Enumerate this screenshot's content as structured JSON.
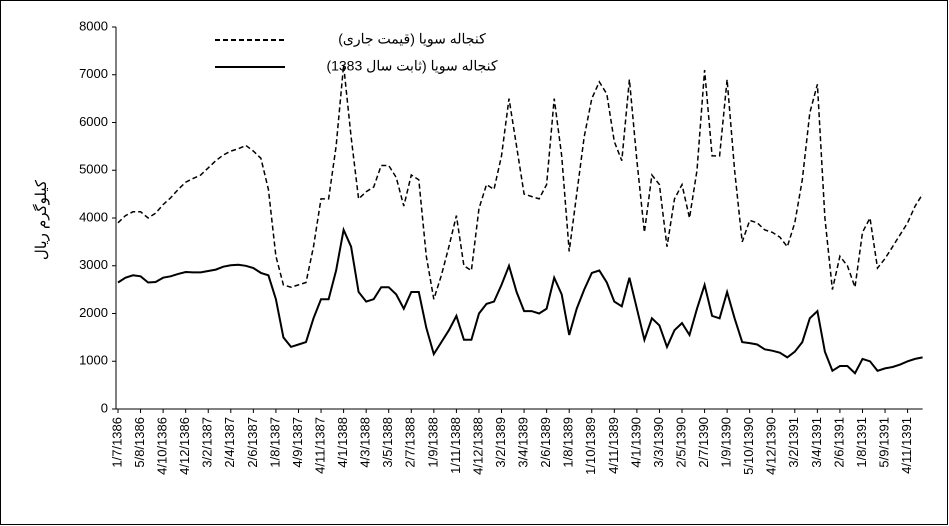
{
  "chart_data": {
    "type": "line",
    "y_label": "کیلوگرم ریال",
    "categories": [
      "1/7/1386",
      null,
      null,
      "5/8/1386",
      null,
      null,
      "4/10/1386",
      null,
      null,
      "4/12/1386",
      null,
      null,
      "3/2/1387",
      null,
      null,
      "2/4/1387",
      null,
      null,
      "2/6/1387",
      null,
      null,
      "1/8/1387",
      null,
      null,
      "4/9/1387",
      null,
      null,
      "4/11/1387",
      null,
      null,
      "4/1/1388",
      null,
      null,
      "4/3/1388",
      null,
      null,
      "3/5/1388",
      null,
      null,
      "2/7/1388",
      null,
      null,
      "1/9/1388",
      null,
      null,
      "1/11/1388",
      null,
      null,
      "4/12/1388",
      null,
      null,
      "3/2/1389",
      null,
      null,
      "3/4/1389",
      null,
      null,
      "2/6/1389",
      null,
      null,
      "1/8/1389",
      null,
      null,
      "1/10/1389",
      null,
      null,
      "4/11/1389",
      null,
      null,
      "4/1/1390",
      null,
      null,
      "3/3/1390",
      null,
      null,
      "2/5/1390",
      null,
      null,
      "2/7/1390",
      null,
      null,
      "1/9/1390",
      null,
      null,
      "5/10/1390",
      null,
      null,
      "4/12/1390",
      null,
      null,
      "3/2/1391",
      null,
      null,
      "3/4/1391",
      null,
      null,
      "2/6/1391",
      null,
      null,
      "1/8/1391",
      null,
      null,
      "5/9/1391",
      null,
      null,
      "4/11/1391",
      null,
      null
    ],
    "series": [
      {
        "name": "کنجاله سویا (قیمت جاری)",
        "color": "#000000",
        "line_style": "dashed",
        "values": [
          3900,
          4050,
          4130,
          4130,
          4000,
          4100,
          4280,
          4420,
          4600,
          4750,
          4830,
          4900,
          5050,
          5200,
          5320,
          5400,
          5450,
          5520,
          5400,
          5250,
          4600,
          3200,
          2600,
          2550,
          2600,
          2650,
          3400,
          4400,
          4400,
          5500,
          7200,
          5700,
          4400,
          4550,
          4650,
          5100,
          5100,
          4850,
          4250,
          4900,
          4800,
          3200,
          2300,
          2800,
          3400,
          4050,
          3000,
          2900,
          4200,
          4700,
          4600,
          5300,
          6500,
          5500,
          4500,
          4450,
          4400,
          4700,
          6500,
          5300,
          3300,
          4500,
          5700,
          6500,
          6850,
          6600,
          5600,
          5200,
          6900,
          5200,
          3700,
          4900,
          4700,
          3400,
          4400,
          4700,
          4000,
          5000,
          7100,
          5300,
          5300,
          6900,
          5000,
          3500,
          3950,
          3900,
          3750,
          3700,
          3600,
          3400,
          3900,
          4800,
          6200,
          6800,
          4000,
          2500,
          3200,
          3000,
          2550,
          3700,
          4000,
          2950,
          3150,
          3400,
          3650,
          3900,
          4250,
          4500
        ]
      },
      {
        "name": "کنجاله سویا (ثابت سال 1383)",
        "color": "#000000",
        "line_style": "solid",
        "values": [
          2650,
          2750,
          2800,
          2780,
          2650,
          2660,
          2750,
          2780,
          2830,
          2870,
          2860,
          2860,
          2890,
          2920,
          2980,
          3010,
          3020,
          3000,
          2950,
          2850,
          2800,
          2300,
          1500,
          1300,
          1350,
          1400,
          1900,
          2300,
          2300,
          2900,
          3750,
          3400,
          2450,
          2250,
          2300,
          2550,
          2550,
          2400,
          2100,
          2450,
          2450,
          1700,
          1150,
          1400,
          1650,
          1950,
          1450,
          1450,
          2000,
          2200,
          2250,
          2600,
          3000,
          2450,
          2050,
          2050,
          2000,
          2100,
          2750,
          2400,
          1550,
          2100,
          2500,
          2850,
          2900,
          2650,
          2250,
          2150,
          2750,
          2100,
          1450,
          1900,
          1750,
          1300,
          1650,
          1800,
          1550,
          2100,
          2600,
          1950,
          1900,
          2450,
          1900,
          1400,
          1380,
          1350,
          1250,
          1220,
          1180,
          1080,
          1200,
          1400,
          1900,
          2050,
          1200,
          800,
          900,
          900,
          750,
          1050,
          1000,
          800,
          850,
          880,
          930,
          1000,
          1050,
          1080
        ]
      }
    ],
    "ylim": [
      0,
      8000
    ],
    "yticks": [
      0,
      1000,
      2000,
      3000,
      4000,
      5000,
      6000,
      7000,
      8000
    ],
    "grid": false
  }
}
